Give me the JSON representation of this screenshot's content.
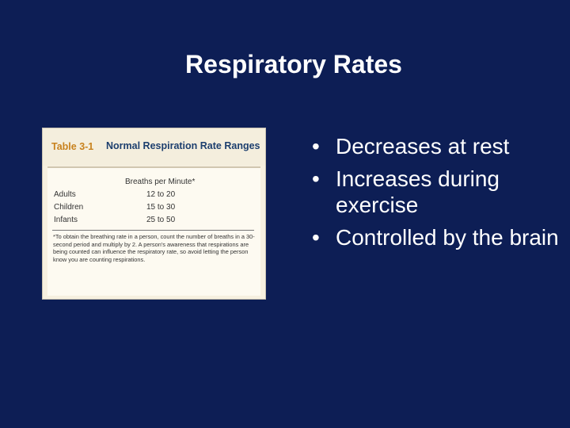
{
  "title": "Respiratory Rates",
  "table": {
    "label": "Table 3-1",
    "title": "Normal Respiration Rate Ranges",
    "column_header": "Breaths per Minute*",
    "rows": [
      {
        "category": "Adults",
        "range": "12 to 20"
      },
      {
        "category": "Children",
        "range": "15 to 30"
      },
      {
        "category": "Infants",
        "range": "25 to 50"
      }
    ],
    "footnote": "*To obtain the breathing rate in a person, count the number of breaths in a 30-second period and multiply by 2. A person's awareness that respirations are being counted can influence the respiratory rate, so avoid letting the person know you are counting respirations."
  },
  "bullet_marker": "•",
  "bullets": [
    "Decreases at rest",
    "Increases during exercise",
    "Controlled by the brain"
  ]
}
